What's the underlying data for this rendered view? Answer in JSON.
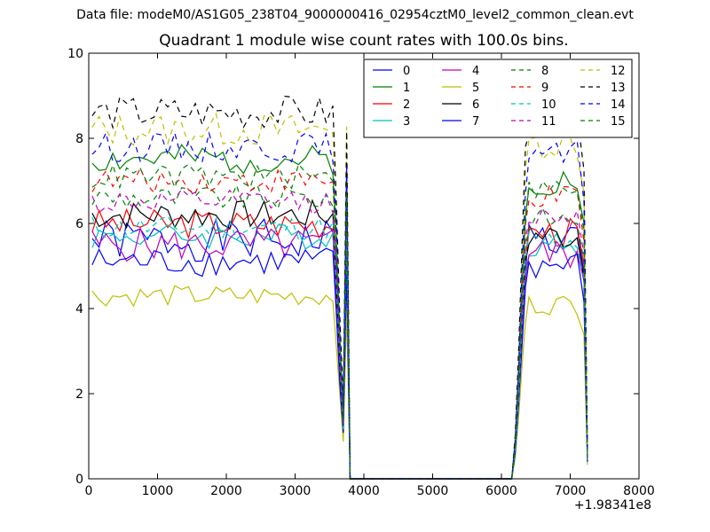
{
  "header": {
    "suptitle": "Data file: modeM0/AS1G05_238T04_9000000416_02954cztM0_level2_common_clean.evt"
  },
  "chart_data": {
    "type": "line",
    "title": "Quadrant 1 module wise count rates with 100.0s bins.",
    "xlabel": "",
    "ylabel": "",
    "xlim": [
      0,
      8000
    ],
    "ylim": [
      0,
      10
    ],
    "x_ticks": [
      "0",
      "1000",
      "2000",
      "3000",
      "4000",
      "5000",
      "6000",
      "7000",
      "8000"
    ],
    "y_ticks": [
      "0",
      "2",
      "4",
      "6",
      "8",
      "10"
    ],
    "x_offset_label": "+1.98341e8",
    "grid": false,
    "legend": {
      "position": "top-right",
      "columns": 4
    },
    "x_segments": [
      {
        "start": 50,
        "end": 3550,
        "step": 100
      },
      {
        "start": 3600,
        "end": 3800,
        "step": 50
      },
      {
        "start": 6150,
        "end": 6350,
        "step": 50
      },
      {
        "start": 6400,
        "end": 7150,
        "step": 100
      },
      {
        "start": 7200,
        "end": 7250,
        "step": 50
      }
    ],
    "zero_gap": [
      3800,
      6150
    ],
    "series": [
      {
        "name": "0",
        "color": "#0000ff",
        "style": "solid",
        "base1": 5.6,
        "base2": 5.6,
        "amp": 0.5,
        "seed": 1
      },
      {
        "name": "1",
        "color": "#008000",
        "style": "solid",
        "base1": 7.5,
        "base2": 7.0,
        "amp": 0.35,
        "seed": 2
      },
      {
        "name": "2",
        "color": "#ff0000",
        "style": "solid",
        "base1": 6.0,
        "base2": 5.8,
        "amp": 0.35,
        "seed": 3
      },
      {
        "name": "3",
        "color": "#00bfbf",
        "style": "solid",
        "base1": 5.7,
        "base2": 5.5,
        "amp": 0.3,
        "seed": 4
      },
      {
        "name": "4",
        "color": "#bf00bf",
        "style": "solid",
        "base1": 5.5,
        "base2": 5.3,
        "amp": 0.4,
        "seed": 5
      },
      {
        "name": "5",
        "color": "#bfbf00",
        "style": "solid",
        "base1": 4.3,
        "base2": 4.1,
        "amp": 0.25,
        "seed": 6
      },
      {
        "name": "6",
        "color": "#000000",
        "style": "solid",
        "base1": 6.2,
        "base2": 5.7,
        "amp": 0.35,
        "seed": 7
      },
      {
        "name": "7",
        "color": "#0000ff",
        "style": "solid",
        "base1": 5.1,
        "base2": 5.0,
        "amp": 0.35,
        "seed": 8
      },
      {
        "name": "8",
        "color": "#008000",
        "style": "dashed",
        "base1": 6.6,
        "base2": 6.1,
        "amp": 0.3,
        "seed": 9
      },
      {
        "name": "9",
        "color": "#ff0000",
        "style": "dashed",
        "base1": 7.0,
        "base2": 6.6,
        "amp": 0.3,
        "seed": 10
      },
      {
        "name": "10",
        "color": "#00bfbf",
        "style": "dashed",
        "base1": 5.9,
        "base2": 5.6,
        "amp": 0.3,
        "seed": 11
      },
      {
        "name": "11",
        "color": "#bf00bf",
        "style": "dashed",
        "base1": 6.5,
        "base2": 6.2,
        "amp": 0.3,
        "seed": 12
      },
      {
        "name": "12",
        "color": "#bfbf00",
        "style": "dashed",
        "base1": 8.2,
        "base2": 7.9,
        "amp": 0.4,
        "seed": 13
      },
      {
        "name": "13",
        "color": "#000000",
        "style": "dashed",
        "base1": 8.6,
        "base2": 8.5,
        "amp": 0.4,
        "seed": 14
      },
      {
        "name": "14",
        "color": "#0000ff",
        "style": "dashed",
        "base1": 7.8,
        "base2": 7.6,
        "amp": 0.35,
        "seed": 15
      },
      {
        "name": "15",
        "color": "#008000",
        "style": "dashed",
        "base1": 7.1,
        "base2": 6.8,
        "amp": 0.3,
        "seed": 16
      }
    ]
  }
}
